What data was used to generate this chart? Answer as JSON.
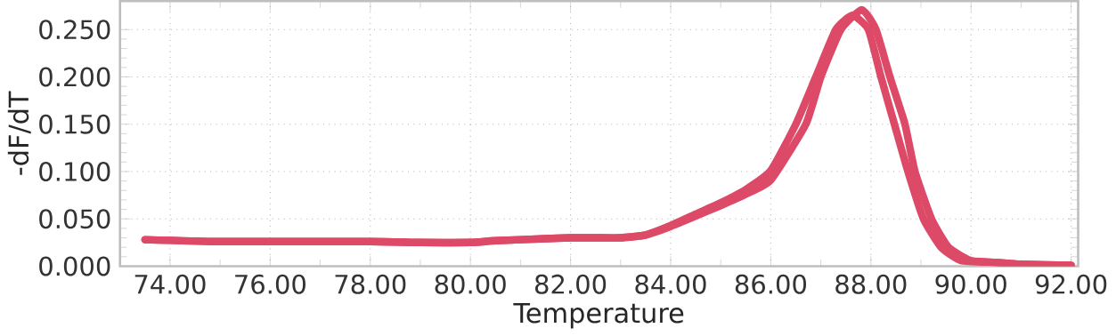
{
  "chart_data": {
    "type": "line",
    "xlabel": "Temperature",
    "ylabel": "-dF/dT",
    "xlim": [
      73,
      92.14
    ],
    "ylim": [
      0,
      0.28
    ],
    "xticks": [
      {
        "value": 74,
        "label": "74.00"
      },
      {
        "value": 76,
        "label": "76.00"
      },
      {
        "value": 78,
        "label": "78.00"
      },
      {
        "value": 80,
        "label": "80.00"
      },
      {
        "value": 82,
        "label": "82.00"
      },
      {
        "value": 84,
        "label": "84.00"
      },
      {
        "value": 86,
        "label": "86.00"
      },
      {
        "value": 88,
        "label": "88.00"
      },
      {
        "value": 90,
        "label": "90.00"
      },
      {
        "value": 92,
        "label": "92.00"
      }
    ],
    "yticks": [
      {
        "value": 0,
        "label": "0.000"
      },
      {
        "value": 0.05,
        "label": "0.050"
      },
      {
        "value": 0.1,
        "label": "0.100"
      },
      {
        "value": 0.15,
        "label": "0.150"
      },
      {
        "value": 0.2,
        "label": "0.200"
      },
      {
        "value": 0.25,
        "label": "0.250"
      }
    ],
    "grid": true,
    "marker": "none",
    "line_style": "solid",
    "series": [
      {
        "color": "#dc4a68",
        "x": [
          73.5,
          75,
          78,
          79,
          80,
          80.5,
          81.5,
          82,
          82.5,
          83,
          83.5,
          84,
          84.5,
          85,
          85.5,
          86,
          86.5,
          86.9,
          87.3,
          87.63,
          87.95,
          88.2,
          88.47,
          88.74,
          89.05,
          89.4,
          89.8,
          90.5,
          91,
          92
        ],
        "values": [
          0.028,
          0.026,
          0.026,
          0.025,
          0.025,
          0.027,
          0.029,
          0.03,
          0.03,
          0.03,
          0.033,
          0.043,
          0.055,
          0.067,
          0.081,
          0.101,
          0.15,
          0.2,
          0.25,
          0.265,
          0.25,
          0.2,
          0.15,
          0.1,
          0.05,
          0.02,
          0.006,
          0.004,
          0.002,
          0.001
        ]
      },
      {
        "color": "#dc4a68",
        "x": [
          73.5,
          75,
          78,
          79,
          80,
          80.5,
          81.5,
          82,
          82.5,
          83,
          83.5,
          84,
          84.5,
          85,
          85.5,
          86,
          86.7,
          87.0,
          87.4,
          87.82,
          88.1,
          88.38,
          88.68,
          88.88,
          89.21,
          89.55,
          89.99,
          90.5,
          91,
          92
        ],
        "values": [
          0.028,
          0.026,
          0.026,
          0.025,
          0.025,
          0.027,
          0.029,
          0.03,
          0.03,
          0.03,
          0.033,
          0.042,
          0.053,
          0.064,
          0.076,
          0.091,
          0.15,
          0.2,
          0.25,
          0.271,
          0.25,
          0.2,
          0.15,
          0.1,
          0.05,
          0.02,
          0.006,
          0.004,
          0.002,
          0.001
        ]
      }
    ]
  }
}
